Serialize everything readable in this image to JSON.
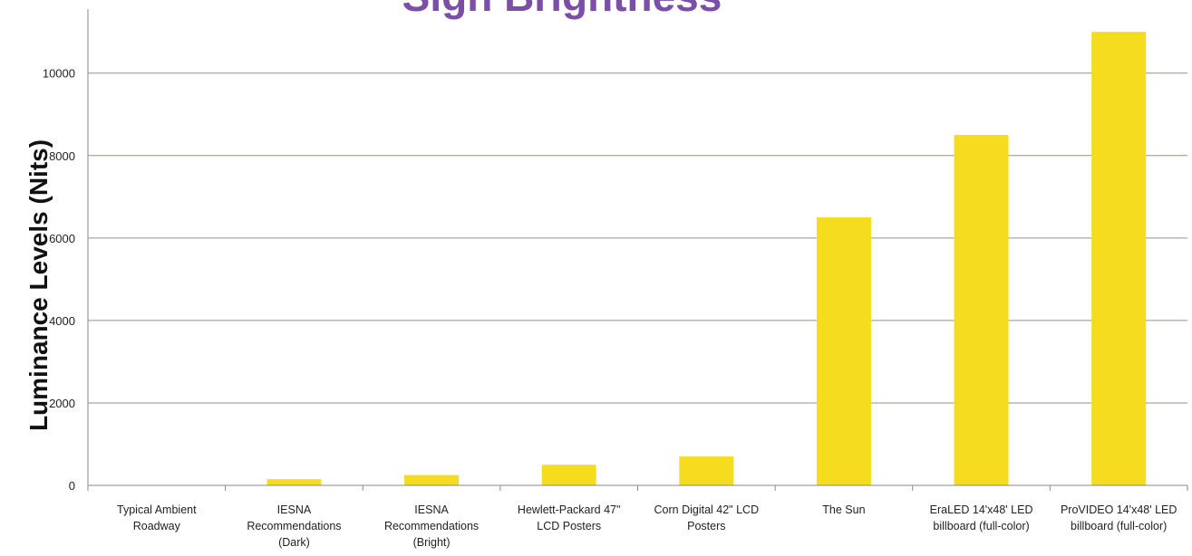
{
  "chart_data": {
    "type": "bar",
    "title": "Sign Brightness",
    "xlabel": "",
    "ylabel": "Luminance Levels (Nits)",
    "categories": [
      [
        "Typical Ambient",
        "Roadway"
      ],
      [
        "IESNA",
        "Recommendations",
        "(Dark)"
      ],
      [
        "IESNA",
        "Recommendations",
        "(Bright)"
      ],
      [
        "Hewlett-Packard 47\"",
        "LCD Posters"
      ],
      [
        "Corn Digital  42\" LCD",
        "Posters"
      ],
      [
        "The Sun"
      ],
      [
        "EraLED 14'x48' LED",
        "billboard (full-color)"
      ],
      [
        "ProVIDEO 14'x48' LED",
        "billboard (full-color)"
      ]
    ],
    "values": [
      0,
      150,
      250,
      500,
      700,
      6500,
      8500,
      11000
    ],
    "ylim": [
      0,
      12000
    ],
    "yticks": [
      0,
      2000,
      4000,
      6000,
      8000,
      10000
    ],
    "grid": true,
    "bar_color": "#f5dc1e",
    "title_color": "#7b4fa6"
  }
}
